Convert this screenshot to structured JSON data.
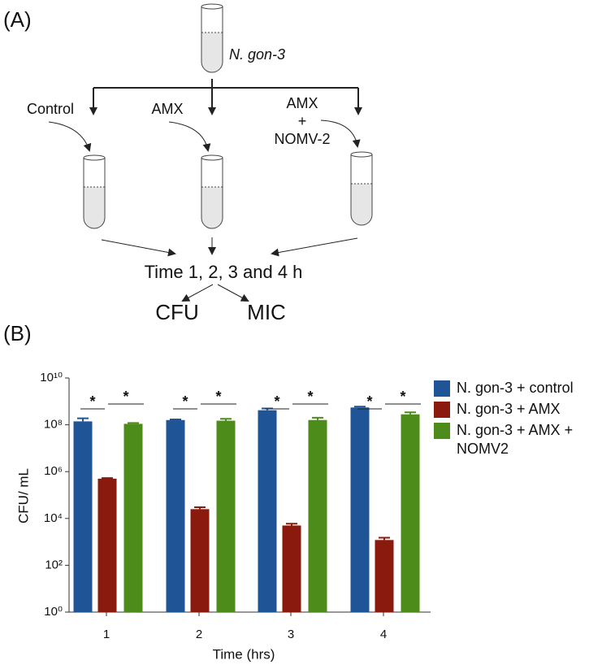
{
  "panel_a": {
    "label": "(A)",
    "source": "N. gon-3",
    "branches": [
      [
        "Control"
      ],
      [
        "AMX"
      ],
      [
        "AMX",
        "+",
        "NOMV-2"
      ]
    ],
    "time": "Time 1, 2, 3 and 4 h",
    "outputs": [
      "CFU",
      "MIC"
    ]
  },
  "panel_b_label": "(B)",
  "chart_data": {
    "type": "bar",
    "log_scale": true,
    "categories": [
      "1",
      "2",
      "3",
      "4"
    ],
    "x_label": "Time (hrs)",
    "y_label": "CFU/ mL",
    "series": [
      {
        "name": "N. gon-3 + control",
        "color": "#1f5597",
        "values": [
          140000000,
          160000000,
          420000000,
          550000000
        ],
        "errors": [
          50000000,
          10000000,
          80000000,
          50000000
        ]
      },
      {
        "name": "N. gon-3 + AMX",
        "color": "#8b1a0e",
        "values": [
          500000,
          25000,
          5000,
          1200
        ],
        "errors": [
          30000,
          5000,
          1000,
          300
        ]
      },
      {
        "name": "N. gon-3 + AMX + NOMV2",
        "color": "#4d8c1a",
        "values": [
          110000000,
          150000000,
          160000000,
          280000000
        ],
        "errors": [
          10000000,
          30000000,
          40000000,
          60000000
        ]
      }
    ],
    "ylim": [
      1,
      10000000000
    ],
    "yticks": [
      {
        "value": 1,
        "label": "10⁰"
      },
      {
        "value": 100,
        "label": "10²"
      },
      {
        "value": 10000,
        "label": "10⁴"
      },
      {
        "value": 1000000,
        "label": "10⁶"
      },
      {
        "value": 100000000,
        "label": "10⁸"
      },
      {
        "value": 10000000000,
        "label": "10¹⁰"
      }
    ],
    "annotations": [
      "*",
      "*",
      "*",
      "*",
      "*",
      "*",
      "*",
      "*"
    ],
    "legend": "right"
  }
}
